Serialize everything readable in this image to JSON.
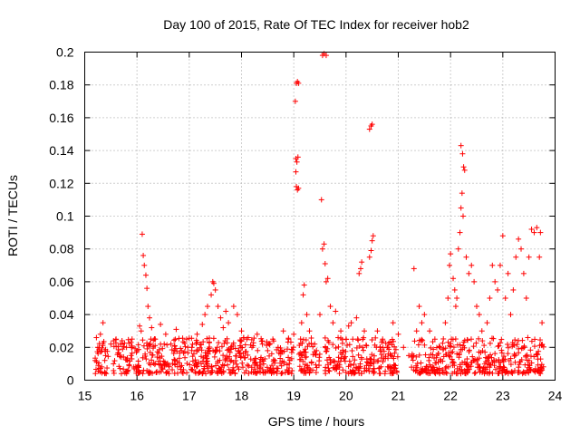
{
  "chart_data": {
    "type": "scatter",
    "title": "Day 100 of 2015, Rate Of TEC Index for receiver hob2",
    "xlabel": "GPS time / hours",
    "ylabel": "ROTI / TECUs",
    "xlim": [
      15,
      24
    ],
    "ylim": [
      0,
      0.2
    ],
    "xticks": [
      "15",
      "16",
      "17",
      "18",
      "19",
      "20",
      "21",
      "22",
      "23",
      "24"
    ],
    "yticks": [
      "0",
      "0.02",
      "0.04",
      "0.06",
      "0.08",
      "0.1",
      "0.12",
      "0.14",
      "0.16",
      "0.18",
      "0.2"
    ],
    "grid": true,
    "marker": "+",
    "color": "#ff0000",
    "series": [
      {
        "name": "hob2",
        "points": [
          [
            15.2,
            0.012
          ],
          [
            15.25,
            0.02
          ],
          [
            15.3,
            0.028
          ],
          [
            15.35,
            0.035
          ],
          [
            15.4,
            0.015
          ],
          [
            15.5,
            0.022
          ],
          [
            15.55,
            0.01
          ],
          [
            15.6,
            0.025
          ],
          [
            15.7,
            0.014
          ],
          [
            15.8,
            0.02
          ],
          [
            15.9,
            0.013
          ],
          [
            16.0,
            0.018
          ],
          [
            16.05,
            0.033
          ],
          [
            16.08,
            0.03
          ],
          [
            16.1,
            0.089
          ],
          [
            16.12,
            0.076
          ],
          [
            16.14,
            0.07
          ],
          [
            16.17,
            0.064
          ],
          [
            16.19,
            0.056
          ],
          [
            16.21,
            0.045
          ],
          [
            16.24,
            0.038
          ],
          [
            16.28,
            0.032
          ],
          [
            16.35,
            0.025
          ],
          [
            16.45,
            0.034
          ],
          [
            16.55,
            0.028
          ],
          [
            16.65,
            0.022
          ],
          [
            16.75,
            0.031
          ],
          [
            16.85,
            0.018
          ],
          [
            16.95,
            0.025
          ],
          [
            17.05,
            0.02
          ],
          [
            17.15,
            0.028
          ],
          [
            17.25,
            0.034
          ],
          [
            17.3,
            0.04
          ],
          [
            17.35,
            0.045
          ],
          [
            17.42,
            0.052
          ],
          [
            17.45,
            0.06
          ],
          [
            17.47,
            0.059
          ],
          [
            17.5,
            0.055
          ],
          [
            17.55,
            0.045
          ],
          [
            17.6,
            0.038
          ],
          [
            17.65,
            0.032
          ],
          [
            17.7,
            0.042
          ],
          [
            17.75,
            0.035
          ],
          [
            17.85,
            0.045
          ],
          [
            17.92,
            0.04
          ],
          [
            18.0,
            0.03
          ],
          [
            18.1,
            0.025
          ],
          [
            18.2,
            0.02
          ],
          [
            18.3,
            0.028
          ],
          [
            18.4,
            0.022
          ],
          [
            18.5,
            0.018
          ],
          [
            18.6,
            0.025
          ],
          [
            18.7,
            0.02
          ],
          [
            18.8,
            0.03
          ],
          [
            18.9,
            0.025
          ],
          [
            19.0,
            0.028
          ],
          [
            19.03,
            0.17
          ],
          [
            19.05,
            0.181
          ],
          [
            19.07,
            0.182
          ],
          [
            19.09,
            0.181
          ],
          [
            19.04,
            0.135
          ],
          [
            19.06,
            0.133
          ],
          [
            19.08,
            0.136
          ],
          [
            19.04,
            0.127
          ],
          [
            19.05,
            0.118
          ],
          [
            19.07,
            0.116
          ],
          [
            19.09,
            0.117
          ],
          [
            19.15,
            0.035
          ],
          [
            19.18,
            0.052
          ],
          [
            19.2,
            0.058
          ],
          [
            19.25,
            0.04
          ],
          [
            19.3,
            0.03
          ],
          [
            19.4,
            0.022
          ],
          [
            19.5,
            0.04
          ],
          [
            19.53,
            0.11
          ],
          [
            19.55,
            0.08
          ],
          [
            19.58,
            0.083
          ],
          [
            19.6,
            0.071
          ],
          [
            19.62,
            0.06
          ],
          [
            19.55,
            0.198
          ],
          [
            19.58,
            0.199
          ],
          [
            19.62,
            0.198
          ],
          [
            19.65,
            0.062
          ],
          [
            19.7,
            0.045
          ],
          [
            19.75,
            0.035
          ],
          [
            19.8,
            0.042
          ],
          [
            19.9,
            0.03
          ],
          [
            20.0,
            0.025
          ],
          [
            20.05,
            0.033
          ],
          [
            20.1,
            0.035
          ],
          [
            20.2,
            0.038
          ],
          [
            20.25,
            0.065
          ],
          [
            20.28,
            0.068
          ],
          [
            20.3,
            0.072
          ],
          [
            20.35,
            0.03
          ],
          [
            20.45,
            0.075
          ],
          [
            20.48,
            0.079
          ],
          [
            20.5,
            0.085
          ],
          [
            20.52,
            0.088
          ],
          [
            20.45,
            0.153
          ],
          [
            20.48,
            0.155
          ],
          [
            20.5,
            0.156
          ],
          [
            20.6,
            0.03
          ],
          [
            20.7,
            0.025
          ],
          [
            20.8,
            0.02
          ],
          [
            20.9,
            0.035
          ],
          [
            21.0,
            0.028
          ],
          [
            21.1,
            0.02
          ],
          [
            21.2,
            0.015
          ],
          [
            21.3,
            0.068
          ],
          [
            21.35,
            0.03
          ],
          [
            21.4,
            0.045
          ],
          [
            21.45,
            0.035
          ],
          [
            21.5,
            0.04
          ],
          [
            21.6,
            0.03
          ],
          [
            21.7,
            0.025
          ],
          [
            21.8,
            0.02
          ],
          [
            21.9,
            0.035
          ],
          [
            21.95,
            0.05
          ],
          [
            21.98,
            0.07
          ],
          [
            22.0,
            0.077
          ],
          [
            22.05,
            0.062
          ],
          [
            22.08,
            0.055
          ],
          [
            22.1,
            0.045
          ],
          [
            22.12,
            0.05
          ],
          [
            22.15,
            0.08
          ],
          [
            22.18,
            0.09
          ],
          [
            22.2,
            0.105
          ],
          [
            22.22,
            0.114
          ],
          [
            22.24,
            0.1
          ],
          [
            22.2,
            0.143
          ],
          [
            22.23,
            0.138
          ],
          [
            22.25,
            0.13
          ],
          [
            22.27,
            0.128
          ],
          [
            22.3,
            0.075
          ],
          [
            22.35,
            0.065
          ],
          [
            22.4,
            0.07
          ],
          [
            22.45,
            0.06
          ],
          [
            22.5,
            0.045
          ],
          [
            22.55,
            0.04
          ],
          [
            22.6,
            0.03
          ],
          [
            22.7,
            0.035
          ],
          [
            22.75,
            0.05
          ],
          [
            22.8,
            0.07
          ],
          [
            22.85,
            0.06
          ],
          [
            22.9,
            0.055
          ],
          [
            22.95,
            0.07
          ],
          [
            23.0,
            0.088
          ],
          [
            23.05,
            0.05
          ],
          [
            23.1,
            0.065
          ],
          [
            23.15,
            0.04
          ],
          [
            23.2,
            0.055
          ],
          [
            23.25,
            0.075
          ],
          [
            23.3,
            0.086
          ],
          [
            23.35,
            0.08
          ],
          [
            23.4,
            0.065
          ],
          [
            23.45,
            0.05
          ],
          [
            23.5,
            0.075
          ],
          [
            23.55,
            0.092
          ],
          [
            23.6,
            0.09
          ],
          [
            23.65,
            0.093
          ],
          [
            23.7,
            0.075
          ],
          [
            23.72,
            0.09
          ],
          [
            23.75,
            0.035
          ]
        ],
        "baseline": {
          "ranges": [
            [
              15.2,
              15.45
            ],
            [
              15.55,
              16.05
            ],
            [
              16.1,
              18.25
            ],
            [
              18.25,
              19.0
            ],
            [
              19.1,
              19.5
            ],
            [
              19.6,
              21.0
            ],
            [
              21.25,
              21.9
            ],
            [
              21.9,
              23.8
            ]
          ],
          "level": [
            0.004,
            0.026
          ]
        }
      }
    ]
  }
}
